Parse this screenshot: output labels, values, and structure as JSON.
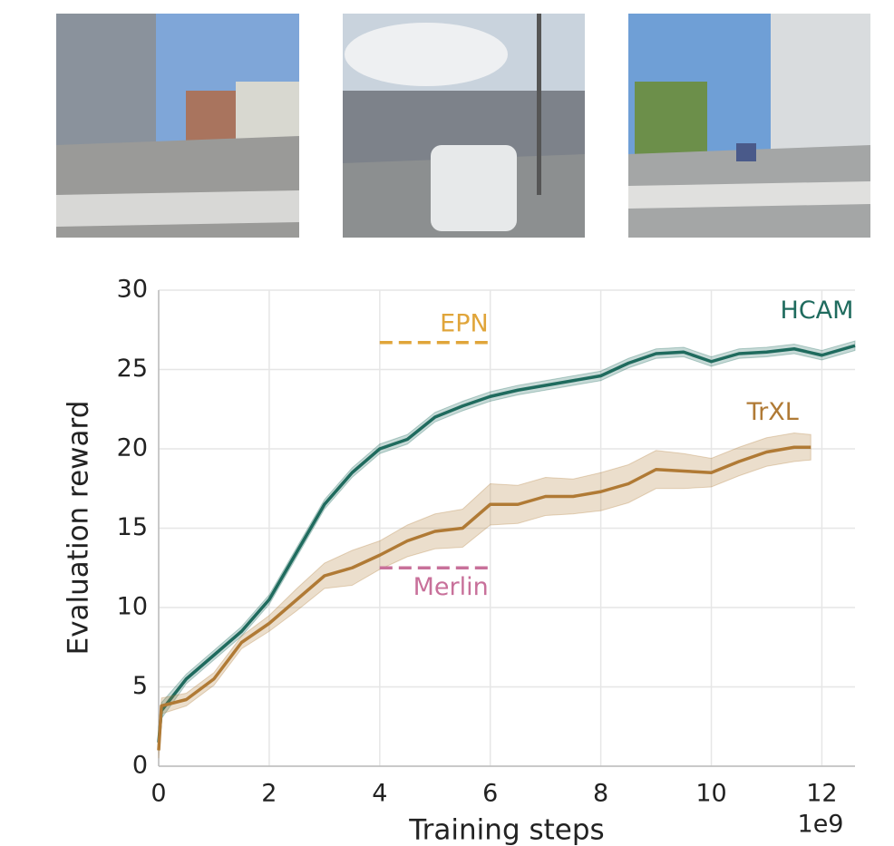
{
  "chart_data": {
    "type": "line",
    "xlabel": "Training steps",
    "ylabel": "Evaluation reward",
    "x_offset_label": "1e9",
    "xlim": [
      0,
      12.6
    ],
    "ylim": [
      0,
      30
    ],
    "xticks": [
      0,
      2,
      4,
      6,
      8,
      10,
      12
    ],
    "yticks": [
      0,
      5,
      10,
      15,
      20,
      25,
      30
    ],
    "grid": true,
    "series": [
      {
        "name": "HCAM",
        "color": "#1f6b5e",
        "x": [
          0,
          0.05,
          0.5,
          1,
          1.5,
          2,
          2.5,
          3,
          3.5,
          4,
          4.5,
          5,
          5.5,
          6,
          6.5,
          7,
          7.5,
          8,
          8.5,
          9,
          9.5,
          10,
          10.5,
          11,
          11.5,
          12,
          12.6
        ],
        "values": [
          1.5,
          3.5,
          5.5,
          7,
          8.5,
          10.5,
          13.5,
          16.5,
          18.5,
          20,
          20.6,
          22,
          22.7,
          23.3,
          23.7,
          24,
          24.3,
          24.6,
          25.4,
          26,
          26.1,
          25.5,
          26,
          26.1,
          26.3,
          25.9,
          26.5
        ],
        "lower": [
          1,
          3,
          5.2,
          6.7,
          8.2,
          10.2,
          13.2,
          16.2,
          18.2,
          19.7,
          20.3,
          21.7,
          22.4,
          23,
          23.4,
          23.7,
          24,
          24.3,
          25.1,
          25.7,
          25.8,
          25.2,
          25.7,
          25.8,
          26,
          25.6,
          26.2
        ],
        "upper": [
          2,
          4,
          5.8,
          7.3,
          8.8,
          10.8,
          13.8,
          16.8,
          18.8,
          20.3,
          20.9,
          22.3,
          23,
          23.6,
          24,
          24.3,
          24.6,
          24.9,
          25.7,
          26.3,
          26.4,
          25.8,
          26.3,
          26.4,
          26.6,
          26.2,
          26.8
        ]
      },
      {
        "name": "TrXL",
        "color": "#b07a35",
        "x": [
          0,
          0.05,
          0.5,
          1,
          1.5,
          2,
          2.5,
          3,
          3.5,
          4,
          4.5,
          5,
          5.5,
          6,
          6.5,
          7,
          7.5,
          8,
          8.5,
          9,
          9.5,
          10,
          10.5,
          11,
          11.5,
          11.8
        ],
        "values": [
          1,
          3.8,
          4.2,
          5.5,
          7.8,
          9,
          10.5,
          12,
          12.5,
          13.3,
          14.2,
          14.8,
          15,
          16.5,
          16.5,
          17,
          17,
          17.3,
          17.8,
          18.7,
          18.6,
          18.5,
          19.2,
          19.8,
          20.1,
          20.1
        ],
        "lower": [
          0.5,
          3.3,
          3.8,
          5.1,
          7.4,
          8.5,
          9.8,
          11.2,
          11.4,
          12.4,
          13.2,
          13.7,
          13.8,
          15.2,
          15.3,
          15.8,
          15.9,
          16.1,
          16.6,
          17.5,
          17.5,
          17.6,
          18.3,
          18.9,
          19.2,
          19.3
        ],
        "upper": [
          1.5,
          4.3,
          4.6,
          5.9,
          8.2,
          9.5,
          11.2,
          12.8,
          13.6,
          14.2,
          15.2,
          15.9,
          16.2,
          17.8,
          17.7,
          18.2,
          18.1,
          18.5,
          19,
          19.9,
          19.7,
          19.4,
          20.1,
          20.7,
          21,
          20.9
        ]
      }
    ],
    "reference_lines": [
      {
        "name": "EPN",
        "value": 26.7,
        "x": [
          4,
          6
        ],
        "color": "#e0a53a"
      },
      {
        "name": "Merlin",
        "value": 12.5,
        "x": [
          4,
          6
        ],
        "color": "#c8709a"
      }
    ]
  }
}
